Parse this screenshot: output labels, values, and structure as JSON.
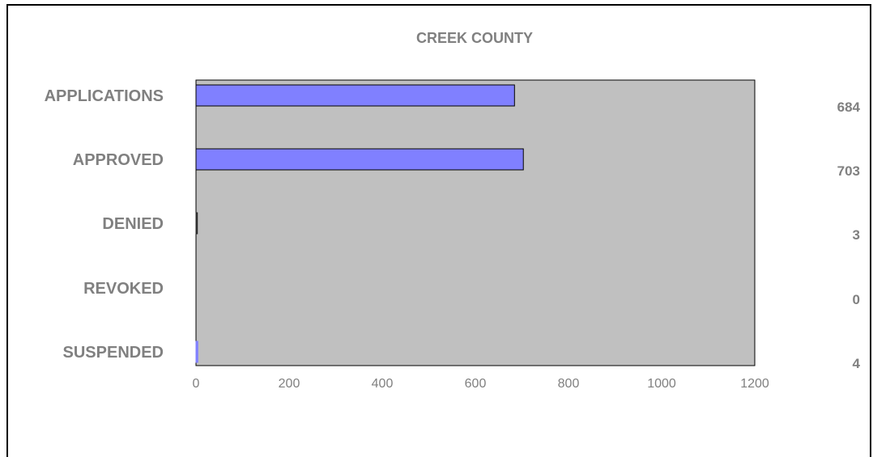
{
  "chart_data": {
    "type": "bar",
    "orientation": "horizontal",
    "title": "CREEK COUNTY",
    "categories": [
      "APPLICATIONS",
      "APPROVED",
      "DENIED",
      "REVOKED",
      "SUSPENDED"
    ],
    "values": [
      684,
      703,
      3,
      0,
      4
    ],
    "value_labels": [
      "684",
      "703",
      "3",
      "0",
      "4"
    ],
    "xlim": [
      0,
      1200
    ],
    "x_ticks": [
      0,
      200,
      400,
      600,
      800,
      1000,
      1200
    ],
    "xlabel": "",
    "ylabel": "",
    "grid": false,
    "legend": "none"
  },
  "colors": {
    "bar_fill": "#8080ff",
    "plot_background": "#c0c0c0",
    "text": "#808080",
    "frame": "#000000"
  }
}
